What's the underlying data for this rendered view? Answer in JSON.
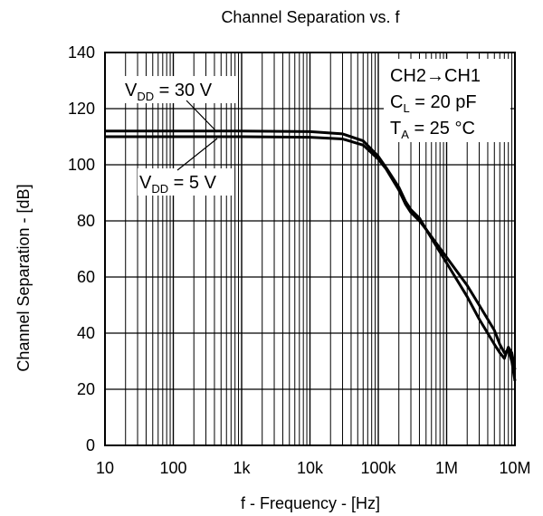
{
  "chart_data": {
    "type": "line",
    "title": "Channel Separation vs. f",
    "xlabel": "f - Frequency - [Hz]",
    "ylabel": "Channel Separation - [dB]",
    "x_scale": "log",
    "xlim": [
      10,
      10000000
    ],
    "ylim": [
      0,
      140
    ],
    "x_ticks": [
      10,
      100,
      1000,
      10000,
      100000,
      1000000,
      10000000
    ],
    "x_tick_labels": [
      "10",
      "100",
      "1k",
      "10k",
      "100k",
      "1M",
      "10M"
    ],
    "y_ticks": [
      0,
      20,
      40,
      60,
      80,
      100,
      120,
      140
    ],
    "y_tick_labels": [
      "0",
      "20",
      "40",
      "60",
      "80",
      "100",
      "120",
      "140"
    ],
    "grid": true,
    "legend": "none",
    "annotations": {
      "condition_1": "CH2→CH1",
      "condition_2": "C",
      "condition_2_sub": "L",
      "condition_2_rest": " = 20 pF",
      "condition_3": "T",
      "condition_3_sub": "A",
      "condition_3_rest": " = 25 °C",
      "label_30v": "V",
      "label_30v_sub": "DD",
      "label_30v_rest": " = 30 V",
      "label_5v": "V",
      "label_5v_sub": "DD",
      "label_5v_rest": " = 5 V"
    },
    "series": [
      {
        "x": [
          10,
          100,
          1000,
          10000,
          30000,
          60000,
          100000,
          130000,
          200000,
          250000,
          300000,
          400000,
          500000,
          1000000,
          2000000,
          3000000,
          5000000,
          6000000,
          7000000,
          8000000,
          9000000,
          10000000
        ],
        "y": [
          112,
          112,
          112,
          111.8,
          111,
          108.5,
          103,
          99,
          92,
          87,
          84,
          81,
          77,
          67,
          57,
          50,
          41,
          36,
          33,
          34,
          30,
          23
        ]
      },
      {
        "x": [
          10,
          100,
          1000,
          10000,
          30000,
          60000,
          100000,
          130000,
          200000,
          250000,
          300000,
          400000,
          500000,
          1000000,
          2000000,
          3000000,
          5000000,
          6000000,
          7000000,
          8000000,
          9000000,
          10000000
        ],
        "y": [
          110,
          110,
          110,
          109.8,
          109.2,
          107,
          102,
          98.5,
          91,
          86,
          83,
          80,
          77,
          65,
          53,
          45,
          36,
          33,
          31,
          35,
          33,
          27
        ]
      }
    ]
  }
}
